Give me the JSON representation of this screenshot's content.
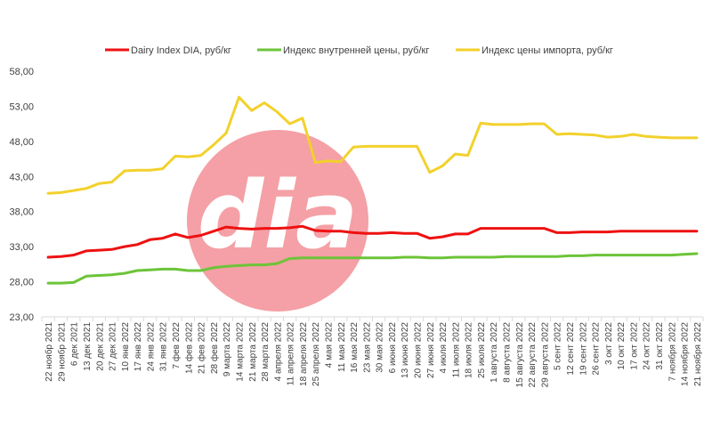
{
  "logo": {
    "text": "dia",
    "color": "#f4a0a6"
  },
  "chart_data": {
    "type": "line",
    "ylim": [
      23,
      58
    ],
    "yticks": [
      "23,00",
      "28,00",
      "33,00",
      "38,00",
      "43,00",
      "48,00",
      "53,00",
      "58,00"
    ],
    "grid": false,
    "legend_position": "top",
    "x": [
      "22 ноябр 2021",
      "29 ноябр 2021",
      "6 дек 2021",
      "13 дек 2021",
      "20 дек 2021",
      "27 дек 2021",
      "10 янв 2022",
      "17 янв 2022",
      "24 янв 2022",
      "31 янв 2022",
      "7 фев 2022",
      "14 фев 2022",
      "21 фев 2022",
      "28 фев 2022",
      "9 марта 2022",
      "14 марта 2022",
      "21 марта 2022",
      "28 марта 2022",
      "4 апреля 2022",
      "11 апреля 2022",
      "18 апреля 2022",
      "25 апреля 2022",
      "4 мая 2022",
      "11 мая 2022",
      "16 мая 2022",
      "23 мая 2022",
      "30 мая 2022",
      "6 июня 2022",
      "13 июня 2022",
      "20 июня 2022",
      "27 июня 2022",
      "4 июля 2022",
      "11 июля 2022",
      "18 июля 2022",
      "25 июля 2022",
      "1 августа 2022",
      "8 августа 2022",
      "15 августа 2022",
      "22 августа 2022",
      "29 августа 2022",
      "5 сент 2022",
      "12 сент 2022",
      "19 сент 2022",
      "26 сент 2022",
      "3 окт 2022",
      "10 окт 2022",
      "17 окт 2022",
      "24 окт 2022",
      "31 окт 2022",
      "7 ноября 2022",
      "14 ноября 2022",
      "21 ноября 2022"
    ],
    "series": [
      {
        "name": "Dairy Index DIA,  руб/кг",
        "color": "#ee1111",
        "values": [
          31.5,
          31.6,
          31.8,
          32.4,
          32.5,
          32.6,
          33.0,
          33.3,
          34.0,
          34.2,
          34.8,
          34.3,
          34.6,
          35.2,
          35.8,
          35.6,
          35.5,
          35.6,
          35.6,
          35.7,
          35.9,
          35.3,
          35.2,
          35.2,
          35.0,
          34.9,
          34.9,
          35.0,
          34.9,
          34.9,
          34.2,
          34.4,
          34.8,
          34.8,
          35.6,
          35.6,
          35.6,
          35.6,
          35.6,
          35.6,
          35.0,
          35.0,
          35.1,
          35.1,
          35.1,
          35.2,
          35.2,
          35.2,
          35.2,
          35.2,
          35.2,
          35.2
        ]
      },
      {
        "name": "Индекс внутренней цены, руб/кг",
        "color": "#6cc438",
        "values": [
          27.8,
          27.8,
          27.9,
          28.8,
          28.9,
          29.0,
          29.2,
          29.6,
          29.7,
          29.8,
          29.8,
          29.6,
          29.6,
          30.0,
          30.2,
          30.3,
          30.4,
          30.4,
          30.6,
          31.3,
          31.4,
          31.4,
          31.4,
          31.4,
          31.4,
          31.4,
          31.4,
          31.4,
          31.5,
          31.5,
          31.4,
          31.4,
          31.5,
          31.5,
          31.5,
          31.5,
          31.6,
          31.6,
          31.6,
          31.6,
          31.6,
          31.7,
          31.7,
          31.8,
          31.8,
          31.8,
          31.8,
          31.8,
          31.8,
          31.8,
          31.9,
          32.0
        ]
      },
      {
        "name": "Индекс цены импорта, руб/кг",
        "color": "#f2d12c",
        "values": [
          40.6,
          40.7,
          41.0,
          41.3,
          42.0,
          42.2,
          43.8,
          43.9,
          43.9,
          44.1,
          45.9,
          45.8,
          46.0,
          47.5,
          49.2,
          54.3,
          52.4,
          53.5,
          52.2,
          50.5,
          51.3,
          45.0,
          45.2,
          45.1,
          47.2,
          47.3,
          47.3,
          47.3,
          47.3,
          47.3,
          43.6,
          44.5,
          46.2,
          46.0,
          50.6,
          50.4,
          50.4,
          50.4,
          50.5,
          50.5,
          49.0,
          49.1,
          49.0,
          48.9,
          48.6,
          48.7,
          49.0,
          48.7,
          48.6,
          48.5,
          48.5,
          48.5
        ]
      }
    ]
  }
}
